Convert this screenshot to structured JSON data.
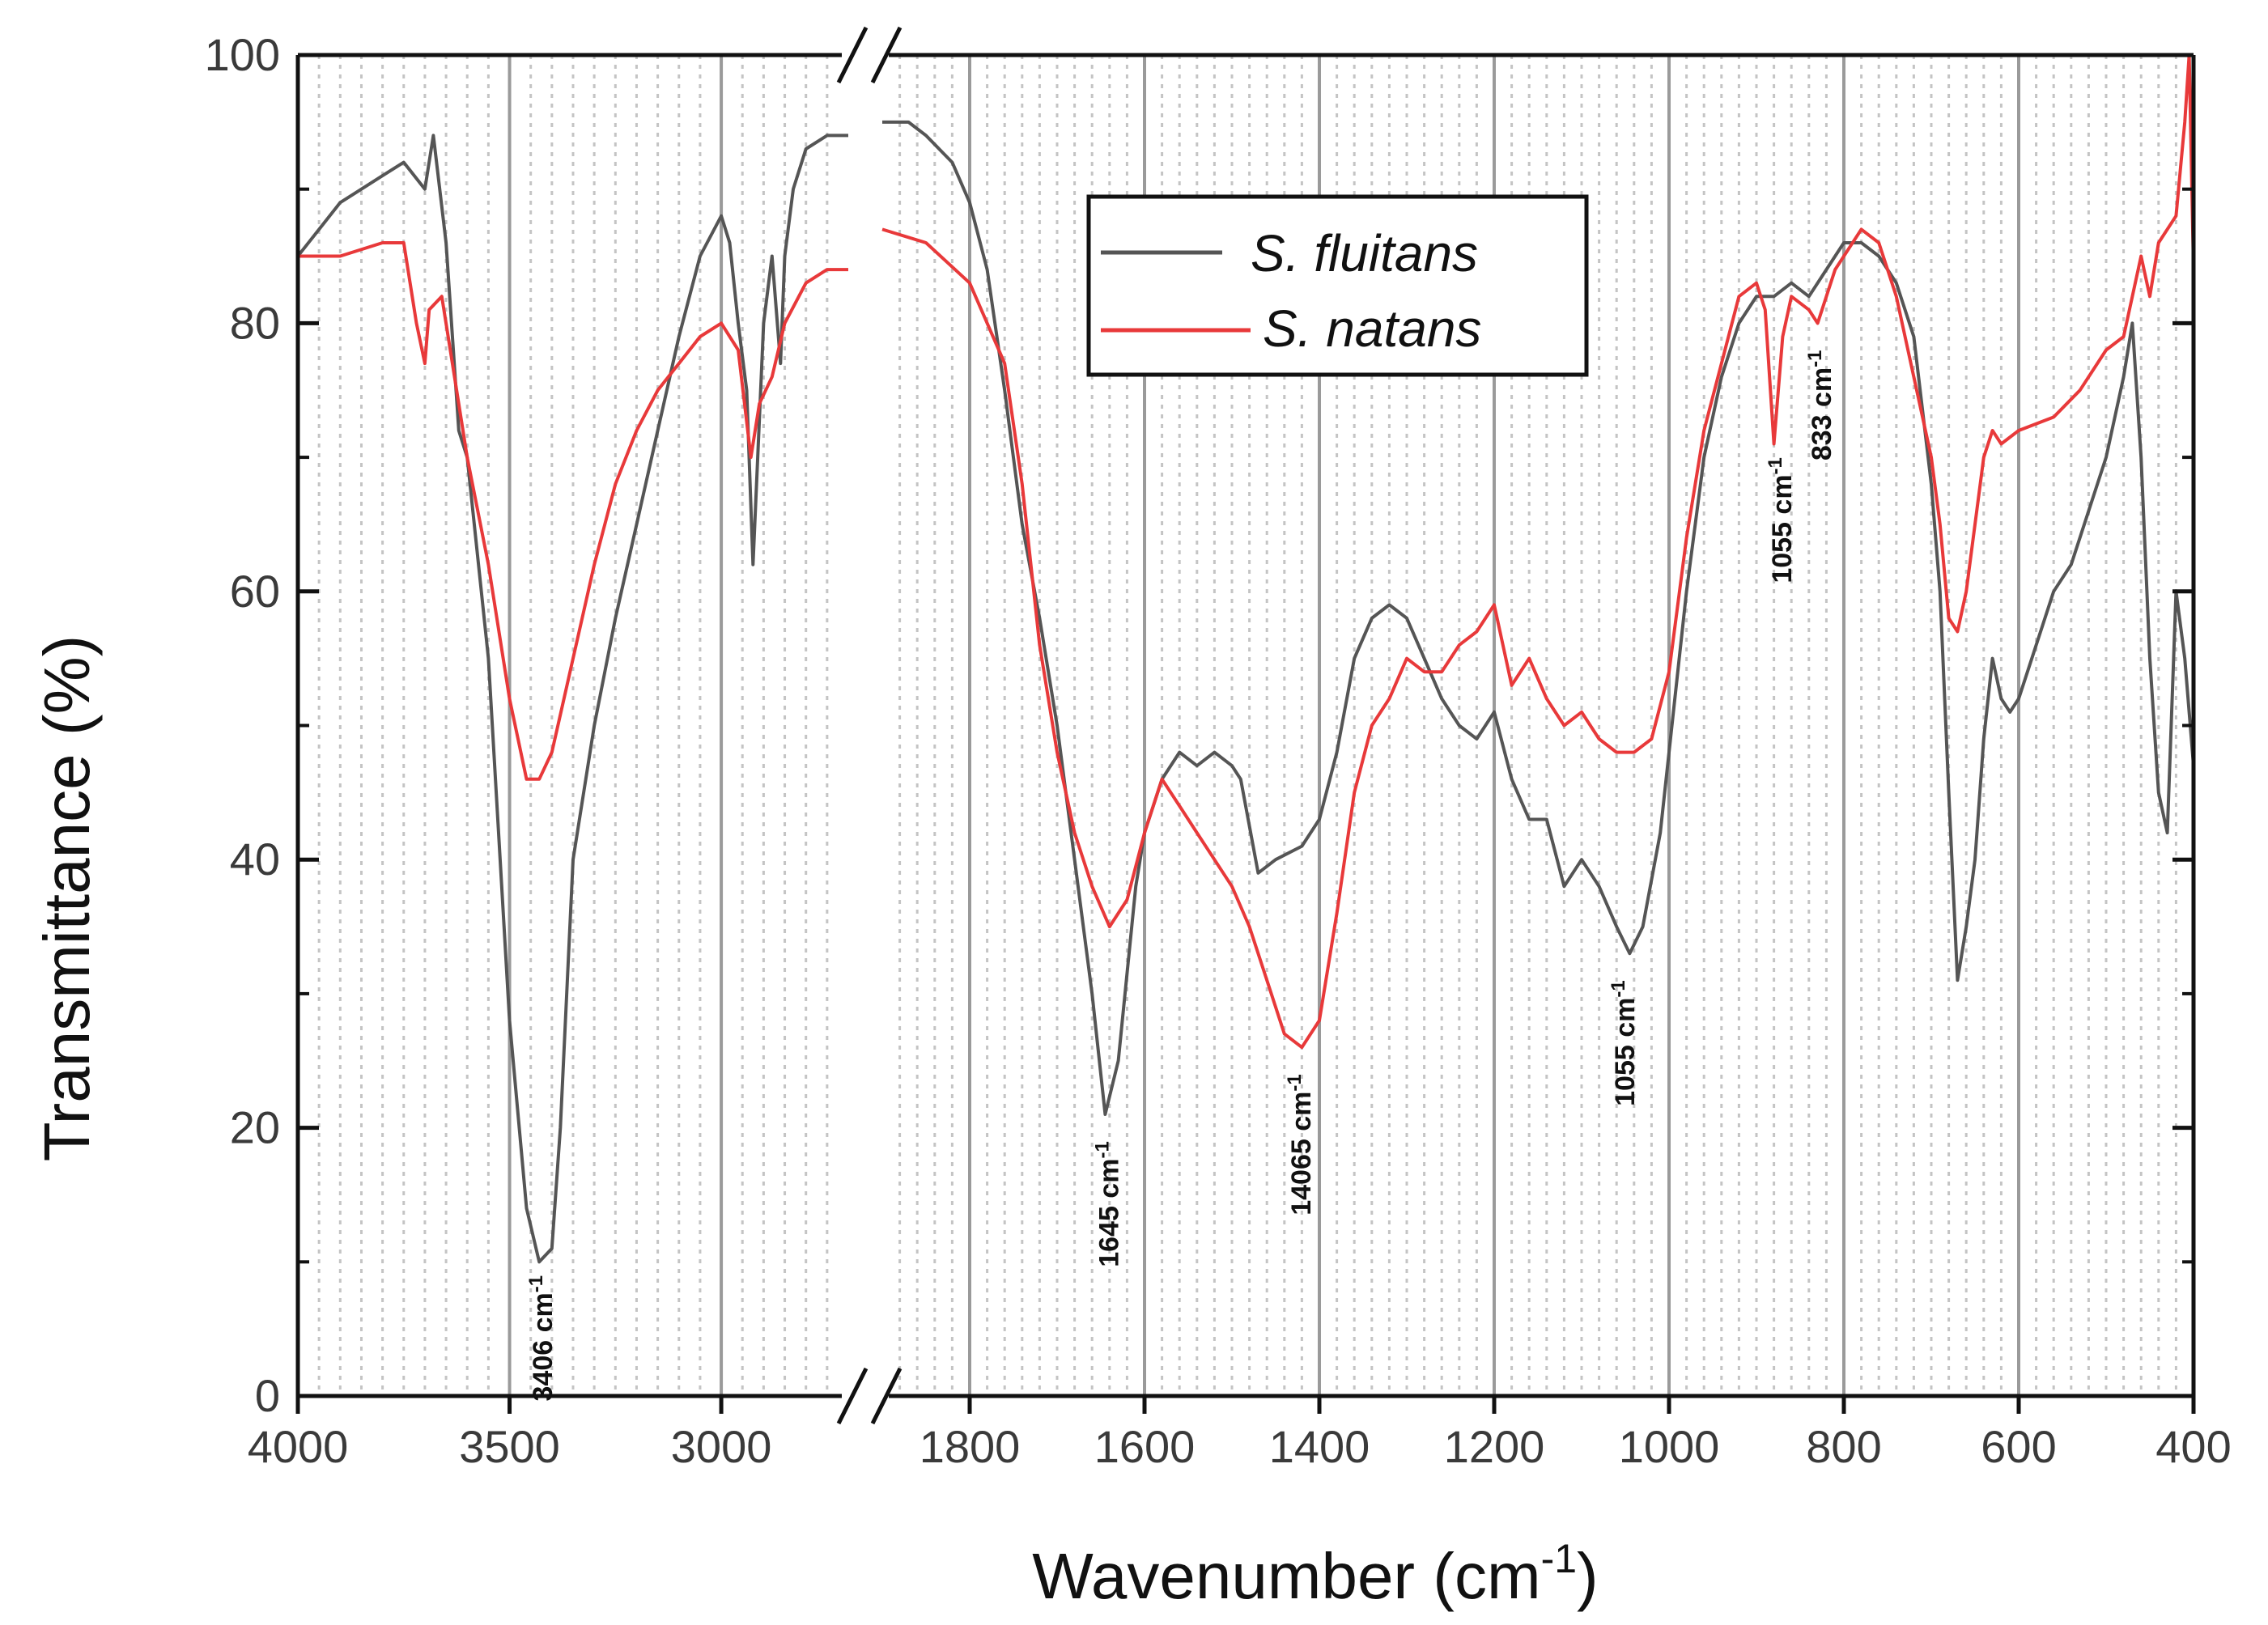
{
  "chart_data": {
    "type": "line",
    "title": "",
    "xlabel": "Wavenumber (cm",
    "xlabel_sup": "-1",
    "xlabel_close": ")",
    "ylabel": "Transmittance (%)",
    "ylim": [
      0,
      100
    ],
    "yticks": [
      "0",
      "20",
      "40",
      "60",
      "80",
      "100"
    ],
    "xticks": [
      "4000",
      "3500",
      "3000",
      "1800",
      "1600",
      "1400",
      "1200",
      "1000",
      "800",
      "600",
      "400"
    ],
    "x_break": "between 2700 and 1900 cm-1",
    "grid": true,
    "legend_position": "top-right",
    "series": [
      {
        "name": "S. fluitans",
        "color": "#555555",
        "points": [
          [
            4000,
            85
          ],
          [
            3950,
            87
          ],
          [
            3900,
            89
          ],
          [
            3850,
            90
          ],
          [
            3800,
            91
          ],
          [
            3750,
            92
          ],
          [
            3700,
            90
          ],
          [
            3680,
            94
          ],
          [
            3650,
            86
          ],
          [
            3620,
            72
          ],
          [
            3600,
            70
          ],
          [
            3550,
            55
          ],
          [
            3500,
            28
          ],
          [
            3460,
            14
          ],
          [
            3430,
            10
          ],
          [
            3400,
            11
          ],
          [
            3380,
            20
          ],
          [
            3350,
            40
          ],
          [
            3300,
            50
          ],
          [
            3250,
            58
          ],
          [
            3200,
            65
          ],
          [
            3150,
            72
          ],
          [
            3100,
            79
          ],
          [
            3050,
            85
          ],
          [
            3000,
            88
          ],
          [
            2980,
            86
          ],
          [
            2960,
            80
          ],
          [
            2940,
            75
          ],
          [
            2925,
            62
          ],
          [
            2900,
            80
          ],
          [
            2880,
            85
          ],
          [
            2860,
            77
          ],
          [
            2850,
            85
          ],
          [
            2830,
            90
          ],
          [
            2800,
            93
          ],
          [
            2750,
            94
          ],
          [
            2700,
            94
          ],
          [
            1900,
            95
          ],
          [
            1870,
            95
          ],
          [
            1850,
            94
          ],
          [
            1820,
            92
          ],
          [
            1800,
            89
          ],
          [
            1780,
            84
          ],
          [
            1760,
            75
          ],
          [
            1740,
            65
          ],
          [
            1720,
            58
          ],
          [
            1700,
            50
          ],
          [
            1680,
            40
          ],
          [
            1660,
            30
          ],
          [
            1645,
            21
          ],
          [
            1630,
            25
          ],
          [
            1610,
            38
          ],
          [
            1600,
            42
          ],
          [
            1580,
            46
          ],
          [
            1560,
            48
          ],
          [
            1540,
            47
          ],
          [
            1520,
            48
          ],
          [
            1500,
            47
          ],
          [
            1490,
            46
          ],
          [
            1470,
            39
          ],
          [
            1450,
            40
          ],
          [
            1420,
            41
          ],
          [
            1400,
            43
          ],
          [
            1380,
            48
          ],
          [
            1360,
            55
          ],
          [
            1340,
            58
          ],
          [
            1320,
            59
          ],
          [
            1300,
            58
          ],
          [
            1280,
            55
          ],
          [
            1260,
            52
          ],
          [
            1240,
            50
          ],
          [
            1220,
            49
          ],
          [
            1200,
            51
          ],
          [
            1180,
            46
          ],
          [
            1160,
            43
          ],
          [
            1140,
            43
          ],
          [
            1120,
            38
          ],
          [
            1100,
            40
          ],
          [
            1080,
            38
          ],
          [
            1060,
            35
          ],
          [
            1045,
            33
          ],
          [
            1030,
            35
          ],
          [
            1010,
            42
          ],
          [
            1000,
            48
          ],
          [
            980,
            60
          ],
          [
            960,
            70
          ],
          [
            940,
            76
          ],
          [
            920,
            80
          ],
          [
            900,
            82
          ],
          [
            880,
            82
          ],
          [
            860,
            83
          ],
          [
            840,
            82
          ],
          [
            820,
            84
          ],
          [
            800,
            86
          ],
          [
            780,
            86
          ],
          [
            760,
            85
          ],
          [
            740,
            83
          ],
          [
            720,
            79
          ],
          [
            700,
            68
          ],
          [
            690,
            60
          ],
          [
            680,
            45
          ],
          [
            670,
            31
          ],
          [
            660,
            35
          ],
          [
            650,
            40
          ],
          [
            640,
            49
          ],
          [
            630,
            55
          ],
          [
            620,
            52
          ],
          [
            610,
            51
          ],
          [
            600,
            52
          ],
          [
            580,
            56
          ],
          [
            560,
            60
          ],
          [
            540,
            62
          ],
          [
            520,
            66
          ],
          [
            500,
            70
          ],
          [
            480,
            76
          ],
          [
            470,
            80
          ],
          [
            460,
            70
          ],
          [
            450,
            55
          ],
          [
            440,
            45
          ],
          [
            430,
            42
          ],
          [
            420,
            60
          ],
          [
            410,
            55
          ],
          [
            400,
            47
          ]
        ]
      },
      {
        "name": "S. natans",
        "color": "#e8393a",
        "points": [
          [
            4000,
            85
          ],
          [
            3900,
            85
          ],
          [
            3800,
            86
          ],
          [
            3750,
            86
          ],
          [
            3720,
            80
          ],
          [
            3700,
            77
          ],
          [
            3690,
            81
          ],
          [
            3660,
            82
          ],
          [
            3640,
            78
          ],
          [
            3600,
            70
          ],
          [
            3550,
            62
          ],
          [
            3500,
            52
          ],
          [
            3460,
            46
          ],
          [
            3430,
            46
          ],
          [
            3400,
            48
          ],
          [
            3350,
            55
          ],
          [
            3300,
            62
          ],
          [
            3250,
            68
          ],
          [
            3200,
            72
          ],
          [
            3150,
            75
          ],
          [
            3100,
            77
          ],
          [
            3050,
            79
          ],
          [
            3000,
            80
          ],
          [
            2960,
            78
          ],
          [
            2930,
            70
          ],
          [
            2910,
            74
          ],
          [
            2880,
            76
          ],
          [
            2850,
            80
          ],
          [
            2800,
            83
          ],
          [
            2750,
            84
          ],
          [
            2700,
            84
          ],
          [
            1900,
            87
          ],
          [
            1850,
            86
          ],
          [
            1800,
            83
          ],
          [
            1760,
            77
          ],
          [
            1740,
            68
          ],
          [
            1720,
            56
          ],
          [
            1700,
            48
          ],
          [
            1680,
            42
          ],
          [
            1660,
            38
          ],
          [
            1640,
            35
          ],
          [
            1620,
            37
          ],
          [
            1600,
            42
          ],
          [
            1580,
            46
          ],
          [
            1560,
            44
          ],
          [
            1540,
            42
          ],
          [
            1520,
            40
          ],
          [
            1500,
            38
          ],
          [
            1480,
            35
          ],
          [
            1460,
            31
          ],
          [
            1440,
            27
          ],
          [
            1420,
            26
          ],
          [
            1400,
            28
          ],
          [
            1380,
            36
          ],
          [
            1360,
            45
          ],
          [
            1340,
            50
          ],
          [
            1320,
            52
          ],
          [
            1300,
            55
          ],
          [
            1280,
            54
          ],
          [
            1260,
            54
          ],
          [
            1240,
            56
          ],
          [
            1220,
            57
          ],
          [
            1200,
            59
          ],
          [
            1180,
            53
          ],
          [
            1160,
            55
          ],
          [
            1140,
            52
          ],
          [
            1120,
            50
          ],
          [
            1100,
            51
          ],
          [
            1080,
            49
          ],
          [
            1060,
            48
          ],
          [
            1040,
            48
          ],
          [
            1020,
            49
          ],
          [
            1000,
            54
          ],
          [
            980,
            64
          ],
          [
            960,
            72
          ],
          [
            940,
            77
          ],
          [
            920,
            82
          ],
          [
            900,
            83
          ],
          [
            890,
            81
          ],
          [
            880,
            71
          ],
          [
            870,
            79
          ],
          [
            860,
            82
          ],
          [
            840,
            81
          ],
          [
            830,
            80
          ],
          [
            810,
            84
          ],
          [
            780,
            87
          ],
          [
            760,
            86
          ],
          [
            740,
            82
          ],
          [
            720,
            76
          ],
          [
            700,
            70
          ],
          [
            690,
            65
          ],
          [
            680,
            58
          ],
          [
            670,
            57
          ],
          [
            660,
            60
          ],
          [
            650,
            65
          ],
          [
            640,
            70
          ],
          [
            630,
            72
          ],
          [
            620,
            71
          ],
          [
            600,
            72
          ],
          [
            560,
            73
          ],
          [
            530,
            75
          ],
          [
            500,
            78
          ],
          [
            480,
            79
          ],
          [
            470,
            82
          ],
          [
            460,
            85
          ],
          [
            450,
            82
          ],
          [
            440,
            86
          ],
          [
            420,
            88
          ],
          [
            410,
            95
          ],
          [
            405,
            100
          ],
          [
            400,
            84
          ]
        ]
      }
    ],
    "annotations": [
      {
        "text": "3406 cm",
        "sup": "-1",
        "x": 3400,
        "y": 9
      },
      {
        "text": "1645 cm",
        "sup": "-1",
        "x": 1630,
        "y": 19
      },
      {
        "text": "14065 cm",
        "sup": "-1",
        "x": 1410,
        "y": 24
      },
      {
        "text": "1055 cm",
        "sup": "-1",
        "x": 1040,
        "y": 31
      },
      {
        "text": "1055 cm",
        "sup": "-1",
        "x": 860,
        "y": 70
      },
      {
        "text": "833 cm",
        "sup": "-1",
        "x": 815,
        "y": 78
      }
    ]
  }
}
